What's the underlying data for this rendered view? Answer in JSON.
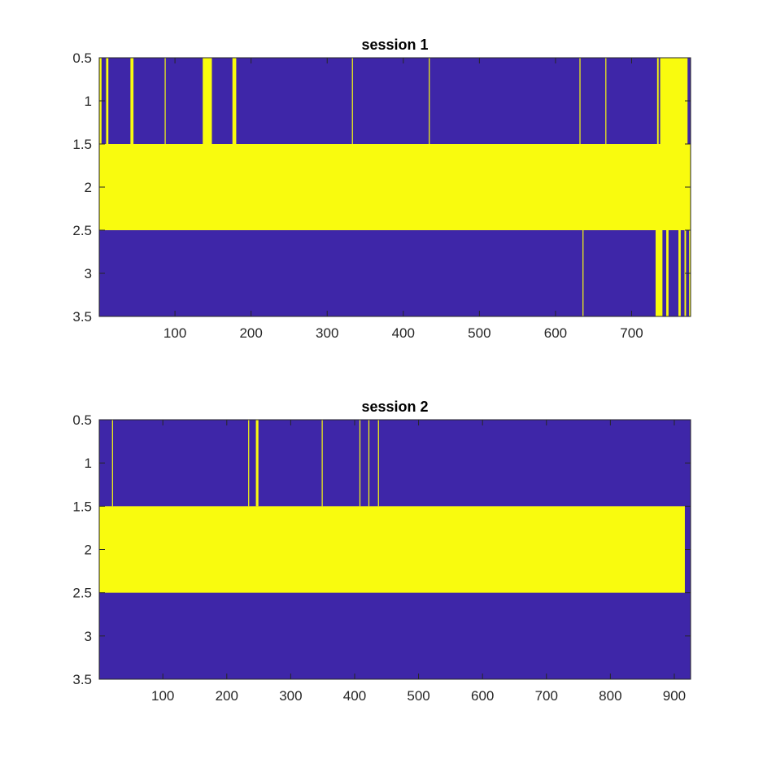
{
  "colors": {
    "background": "#ffffff",
    "low": "#3e26a8",
    "high": "#f9fb0e",
    "axis": "#262626"
  },
  "chart_data": [
    {
      "type": "heatmap",
      "title": "session 1",
      "xlabel": "",
      "ylabel": "",
      "xlim": [
        0.5,
        777.5
      ],
      "ylim": [
        0.5,
        3.5
      ],
      "y_reversed": true,
      "xticks": [
        100,
        200,
        300,
        400,
        500,
        600,
        700
      ],
      "yticks": [
        0.5,
        1,
        1.5,
        2,
        2.5,
        3,
        3.5
      ],
      "rows": 3,
      "background_value": 0,
      "high_cells": [
        {
          "row": 1,
          "ranges": [
            [
              1,
              3
            ],
            [
              10,
              12
            ],
            [
              42,
              45
            ],
            [
              87,
              87
            ],
            [
              137,
              148
            ],
            [
              176,
              180
            ],
            [
              333,
              333
            ],
            [
              434,
              434
            ],
            [
              632,
              632
            ],
            [
              666,
              666
            ],
            [
              734,
              735
            ],
            [
              738,
              773
            ]
          ]
        },
        {
          "row": 2,
          "ranges": [
            [
              1,
              777
            ]
          ]
        },
        {
          "row": 3,
          "ranges": [
            [
              636,
              636
            ],
            [
              732,
              740
            ],
            [
              746,
              748
            ],
            [
              762,
              764
            ],
            [
              770,
              771
            ],
            [
              776,
              777
            ]
          ]
        }
      ]
    },
    {
      "type": "heatmap",
      "title": "session 2",
      "xlabel": "",
      "ylabel": "",
      "xlim": [
        0.5,
        925.5
      ],
      "ylim": [
        0.5,
        3.5
      ],
      "y_reversed": true,
      "xticks": [
        100,
        200,
        300,
        400,
        500,
        600,
        700,
        800,
        900
      ],
      "yticks": [
        0.5,
        1,
        1.5,
        2,
        2.5,
        3,
        3.5
      ],
      "rows": 3,
      "background_value": 0,
      "high_cells": [
        {
          "row": 1,
          "ranges": [
            [
              21,
              21
            ],
            [
              234,
              234
            ],
            [
              246,
              249
            ],
            [
              349,
              349
            ],
            [
              408,
              408
            ],
            [
              422,
              422
            ],
            [
              437,
              437
            ]
          ]
        },
        {
          "row": 2,
          "ranges": [
            [
              1,
              916
            ]
          ]
        },
        {
          "row": 3,
          "ranges": []
        }
      ]
    }
  ]
}
